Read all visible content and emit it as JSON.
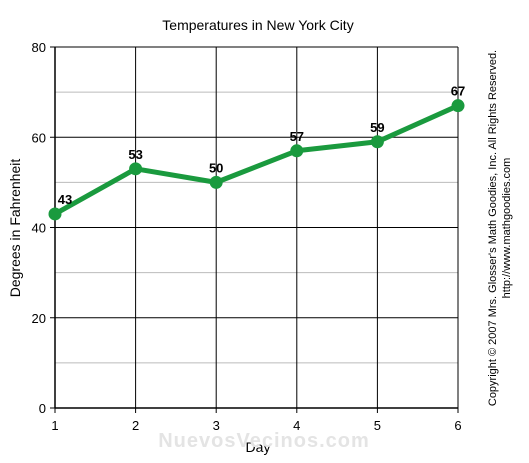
{
  "chart_data": {
    "type": "line",
    "title": "Temperatures in New York City",
    "xlabel": "Day",
    "ylabel": "Degrees in Fahrenheit",
    "x": [
      1,
      2,
      3,
      4,
      5,
      6
    ],
    "values": [
      43,
      53,
      50,
      57,
      59,
      67
    ],
    "xlim": [
      1,
      6
    ],
    "ylim": [
      0,
      80
    ],
    "y_ticks": [
      0,
      20,
      40,
      60,
      80
    ],
    "x_ticks": [
      1,
      2,
      3,
      4,
      5,
      6
    ],
    "grid": true,
    "line_color": "#1a9a3e",
    "grid_color_major": "#000000",
    "grid_color_minor": "#bbbbbb"
  },
  "copyright_line1": "Copyright © 2007 Mrs. Glosser's Math Goodies, Inc.  All Rights Reserved.",
  "copyright_line2": "http://www.mathgoodies.com",
  "watermark": "NuevosVecinos.com"
}
